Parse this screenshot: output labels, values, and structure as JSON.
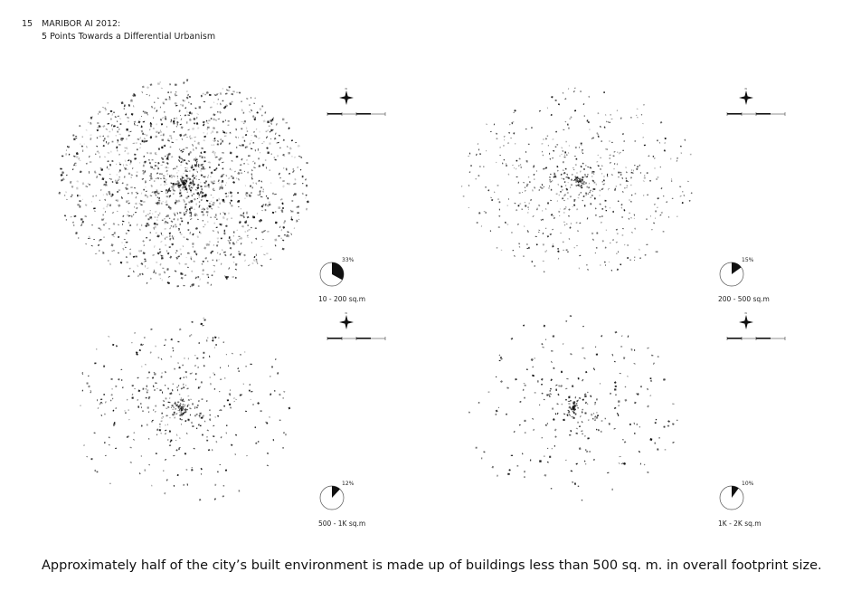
{
  "header": {
    "page_number": "15",
    "title": "MARIBOR AI 2012:",
    "subtitle": "5 Points Towards a Differential Urbanism"
  },
  "panels": [
    {
      "category": "10 - 200 sq.m",
      "percent_label": "33%",
      "share": 0.33
    },
    {
      "category": "200 - 500 sq.m",
      "percent_label": "15%",
      "share": 0.15
    },
    {
      "category": "500 - 1K sq.m",
      "percent_label": "12%",
      "share": 0.12
    },
    {
      "category": "1K - 2K sq.m",
      "percent_label": "10%",
      "share": 0.1
    }
  ],
  "icons": {
    "compass": "north-arrow-icon",
    "scale": "scale-bar-icon",
    "pie": "pie-chart-icon"
  },
  "colors": {
    "ink": "#111111",
    "background": "#ffffff"
  },
  "caption": "Approximately half of the city’s built environment is made up of buildings less than 500 sq. m. in overall footprint size."
}
